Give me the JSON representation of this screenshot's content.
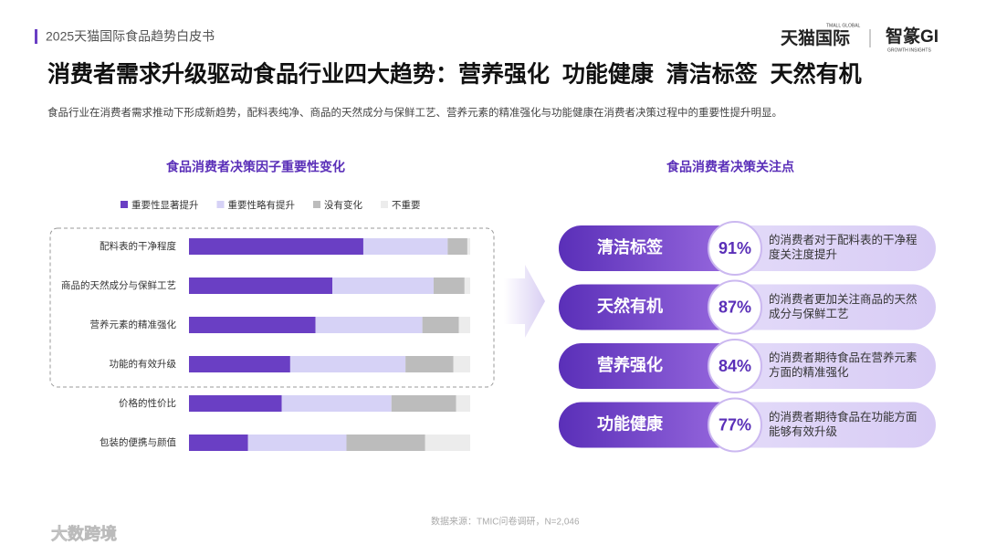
{
  "header": {
    "report": "2025天猫国际食品趋势白皮书",
    "brand1": "天猫国际",
    "brand1_sub": "TMALL GLOBAL",
    "brand2": "智篆GI",
    "brand2_sub": "GROWTH INSIGHTS"
  },
  "title": "消费者需求升级驱动食品行业四大趋势：营养强化  功能健康  清洁标签  天然有机",
  "subtitle": "食品行业在消费者需求推动下形成新趋势，配料表纯净、商品的天然成分与保鲜工艺、营养元素的精准强化与功能健康在消费者决策过程中的重要性提升明显。",
  "chart_data": {
    "type": "bar",
    "orientation": "horizontal",
    "stacked": true,
    "title": "食品消费者决策因子重要性变化",
    "categories": [
      "配料表的干净程度",
      "商品的天然成分与保鲜工艺",
      "营养元素的精准强化",
      "功能的有效升级",
      "价格的性价比",
      "包装的便携与颜值"
    ],
    "series": [
      {
        "name": "重要性显著提升",
        "color": "#6a3fc4",
        "values": [
          62,
          51,
          45,
          36,
          33,
          21
        ]
      },
      {
        "name": "重要性略有提升",
        "color": "#d6d2f6",
        "values": [
          30,
          36,
          38,
          41,
          39,
          35
        ]
      },
      {
        "name": "没有变化",
        "color": "#bcbcbc",
        "values": [
          7,
          11,
          13,
          17,
          23,
          28
        ]
      },
      {
        "name": "不重要",
        "color": "#ececec",
        "values": [
          1,
          2,
          4,
          6,
          5,
          16
        ]
      }
    ],
    "xlim": [
      0,
      100
    ],
    "legend": "top"
  },
  "focus": {
    "title": "食品消费者决策关注点",
    "labels": [
      "清洁标签",
      "天然有机",
      "营养强化",
      "功能健康"
    ],
    "values": [
      91,
      87,
      84,
      77
    ],
    "value_labels": [
      "91%",
      "87%",
      "84%",
      "77%"
    ],
    "texts": [
      "的消费者对于配料表的干净程度关注度提升",
      "的消费者更加关注商品的天然成分与保鲜工艺",
      "的消费者期待食品在营养元素方面的精准强化",
      "的消费者期待食品在功能方面能够有效升级"
    ]
  },
  "source": "数据来源：TMIC问卷调研，N=2,046",
  "watermark": "大数跨境"
}
